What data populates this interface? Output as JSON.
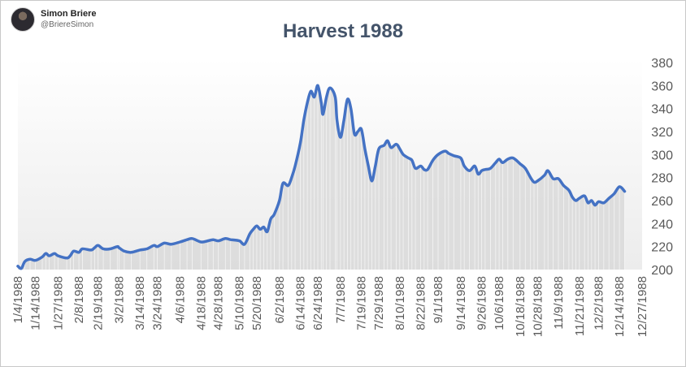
{
  "author": {
    "name": "Simon Briere",
    "handle": "@BriereSimon",
    "avatar_icon": "person-avatar-icon"
  },
  "chart_data": {
    "type": "area",
    "title": "Harvest 1988",
    "xlabel": "",
    "ylabel": "",
    "ylim": [
      200,
      380
    ],
    "yticks": [
      200,
      220,
      240,
      260,
      280,
      300,
      320,
      340,
      360,
      380
    ],
    "y_axis_side": "right",
    "grid": false,
    "legend": "none",
    "x_range": [
      "1/4/1988",
      "12/27/1988"
    ],
    "xtick_labels": [
      "1/4/1988",
      "1/14/1988",
      "1/27/1988",
      "2/8/1988",
      "2/19/1988",
      "3/2/1988",
      "3/14/1988",
      "3/24/1988",
      "4/6/1988",
      "4/18/1988",
      "4/28/1988",
      "5/10/1988",
      "5/20/1988",
      "6/2/1988",
      "6/14/1988",
      "6/24/1988",
      "7/7/1988",
      "7/19/1988",
      "7/29/1988",
      "8/10/1988",
      "8/22/1988",
      "9/1/1988",
      "9/14/1988",
      "9/26/1988",
      "10/6/1988",
      "10/18/1988",
      "10/28/1988",
      "11/9/1988",
      "11/21/1988",
      "12/2/1988",
      "12/14/1988",
      "12/27/1988"
    ],
    "series": [
      {
        "color": "#4472c4",
        "area_color": "#d9d9d9",
        "points": [
          [
            "1/4/1988",
            203
          ],
          [
            "1/6/1988",
            201
          ],
          [
            "1/8/1988",
            207
          ],
          [
            "1/11/1988",
            209
          ],
          [
            "1/14/1988",
            208
          ],
          [
            "1/18/1988",
            211
          ],
          [
            "1/20/1988",
            214
          ],
          [
            "1/22/1988",
            212
          ],
          [
            "1/25/1988",
            214
          ],
          [
            "1/27/1988",
            212
          ],
          [
            "2/1/1988",
            210
          ],
          [
            "2/3/1988",
            212
          ],
          [
            "2/5/1988",
            216
          ],
          [
            "2/8/1988",
            215
          ],
          [
            "2/10/1988",
            218
          ],
          [
            "2/15/1988",
            217
          ],
          [
            "2/17/1988",
            219
          ],
          [
            "2/19/1988",
            221
          ],
          [
            "2/22/1988",
            218
          ],
          [
            "2/26/1988",
            218
          ],
          [
            "3/1/1988",
            220
          ],
          [
            "3/2/1988",
            219
          ],
          [
            "3/5/1988",
            216
          ],
          [
            "3/9/1988",
            215
          ],
          [
            "3/14/1988",
            217
          ],
          [
            "3/18/1988",
            218
          ],
          [
            "3/22/1988",
            221
          ],
          [
            "3/24/1988",
            220
          ],
          [
            "3/28/1988",
            223
          ],
          [
            "4/1/1988",
            222
          ],
          [
            "4/6/1988",
            224
          ],
          [
            "4/10/1988",
            226
          ],
          [
            "4/13/1988",
            227
          ],
          [
            "4/18/1988",
            224
          ],
          [
            "4/22/1988",
            225
          ],
          [
            "4/25/1988",
            226
          ],
          [
            "4/28/1988",
            225
          ],
          [
            "5/2/1988",
            227
          ],
          [
            "5/5/1988",
            226
          ],
          [
            "5/10/1988",
            225
          ],
          [
            "5/13/1988",
            222
          ],
          [
            "5/16/1988",
            231
          ],
          [
            "5/18/1988",
            235
          ],
          [
            "5/20/1988",
            238
          ],
          [
            "5/22/1988",
            235
          ],
          [
            "5/24/1988",
            237
          ],
          [
            "5/26/1988",
            233
          ],
          [
            "5/28/1988",
            244
          ],
          [
            "5/30/1988",
            248
          ],
          [
            "6/2/1988",
            260
          ],
          [
            "6/4/1988",
            275
          ],
          [
            "6/7/1988",
            273
          ],
          [
            "6/9/1988",
            280
          ],
          [
            "6/11/1988",
            290
          ],
          [
            "6/14/1988",
            310
          ],
          [
            "6/16/1988",
            330
          ],
          [
            "6/18/1988",
            345
          ],
          [
            "6/20/1988",
            355
          ],
          [
            "6/22/1988",
            350
          ],
          [
            "6/24/1988",
            360
          ],
          [
            "6/26/1988",
            345
          ],
          [
            "6/27/1988",
            335
          ],
          [
            "6/29/1988",
            350
          ],
          [
            "7/1/1988",
            358
          ],
          [
            "7/4/1988",
            350
          ],
          [
            "7/5/1988",
            330
          ],
          [
            "7/7/1988",
            315
          ],
          [
            "7/9/1988",
            330
          ],
          [
            "7/11/1988",
            348
          ],
          [
            "7/13/1988",
            340
          ],
          [
            "7/15/1988",
            318
          ],
          [
            "7/17/1988",
            320
          ],
          [
            "7/19/1988",
            322
          ],
          [
            "7/21/1988",
            305
          ],
          [
            "7/23/1988",
            290
          ],
          [
            "7/25/1988",
            277
          ],
          [
            "7/27/1988",
            290
          ],
          [
            "7/29/1988",
            305
          ],
          [
            "8/1/1988",
            308
          ],
          [
            "8/3/1988",
            312
          ],
          [
            "8/5/1988",
            306
          ],
          [
            "8/8/1988",
            309
          ],
          [
            "8/10/1988",
            305
          ],
          [
            "8/12/1988",
            300
          ],
          [
            "8/15/1988",
            297
          ],
          [
            "8/17/1988",
            295
          ],
          [
            "8/19/1988",
            288
          ],
          [
            "8/22/1988",
            290
          ],
          [
            "8/24/1988",
            287
          ],
          [
            "8/26/1988",
            287
          ],
          [
            "8/29/1988",
            295
          ],
          [
            "9/1/1988",
            300
          ],
          [
            "9/5/1988",
            303
          ],
          [
            "9/7/1988",
            301
          ],
          [
            "9/10/1988",
            299
          ],
          [
            "9/14/1988",
            297
          ],
          [
            "9/16/1988",
            290
          ],
          [
            "9/19/1988",
            286
          ],
          [
            "9/22/1988",
            290
          ],
          [
            "9/24/1988",
            283
          ],
          [
            "9/26/1988",
            286
          ],
          [
            "9/28/1988",
            287
          ],
          [
            "10/1/1988",
            288
          ],
          [
            "10/4/1988",
            293
          ],
          [
            "10/6/1988",
            296
          ],
          [
            "10/8/1988",
            293
          ],
          [
            "10/11/1988",
            296
          ],
          [
            "10/14/1988",
            297
          ],
          [
            "10/18/1988",
            292
          ],
          [
            "10/21/1988",
            288
          ],
          [
            "10/24/1988",
            280
          ],
          [
            "10/26/1988",
            276
          ],
          [
            "10/28/1988",
            277
          ],
          [
            "11/1/1988",
            282
          ],
          [
            "11/3/1988",
            286
          ],
          [
            "11/6/1988",
            279
          ],
          [
            "11/9/1988",
            279
          ],
          [
            "11/12/1988",
            273
          ],
          [
            "11/15/1988",
            269
          ],
          [
            "11/17/1988",
            263
          ],
          [
            "11/19/1988",
            260
          ],
          [
            "11/21/1988",
            262
          ],
          [
            "11/24/1988",
            264
          ],
          [
            "11/26/1988",
            258
          ],
          [
            "11/28/1988",
            260
          ],
          [
            "11/30/1988",
            256
          ],
          [
            "12/2/1988",
            259
          ],
          [
            "12/5/1988",
            258
          ],
          [
            "12/8/1988",
            262
          ],
          [
            "12/11/1988",
            266
          ],
          [
            "12/14/1988",
            272
          ],
          [
            "12/17/1988",
            268
          ]
        ]
      }
    ]
  }
}
